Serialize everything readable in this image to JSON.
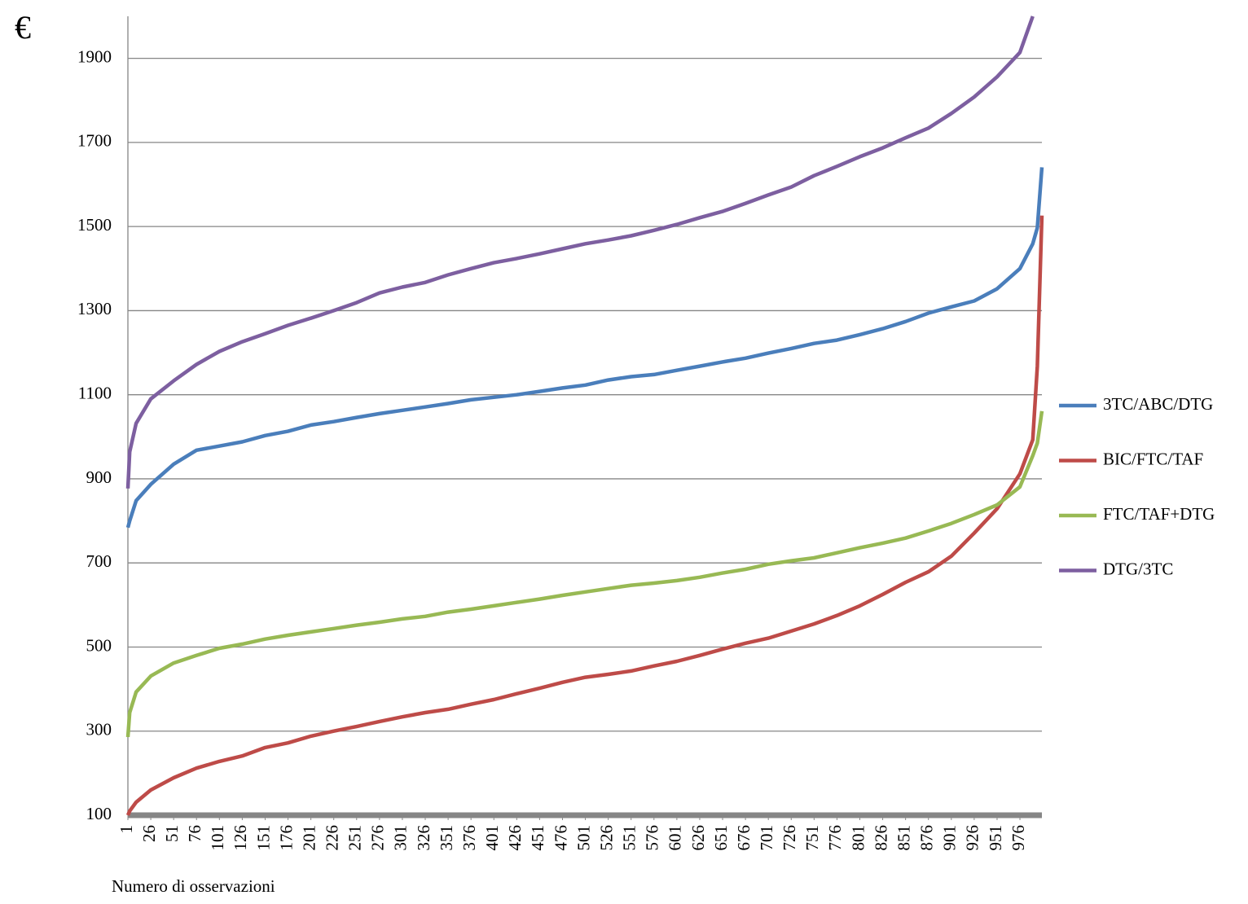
{
  "chart_data": {
    "type": "line",
    "y_label": "€",
    "x_label": "Numero di osservazioni",
    "x": [
      1,
      3,
      10,
      26,
      51,
      76,
      101,
      126,
      151,
      176,
      201,
      226,
      251,
      276,
      301,
      326,
      351,
      376,
      401,
      426,
      451,
      476,
      501,
      526,
      551,
      576,
      601,
      626,
      651,
      676,
      701,
      726,
      751,
      776,
      801,
      826,
      851,
      876,
      901,
      926,
      951,
      976,
      990,
      995,
      1000
    ],
    "xlim": [
      1,
      1000
    ],
    "xticks": [
      1,
      26,
      51,
      76,
      101,
      126,
      151,
      176,
      201,
      226,
      251,
      276,
      301,
      326,
      351,
      376,
      401,
      426,
      451,
      476,
      501,
      526,
      551,
      576,
      601,
      626,
      651,
      676,
      701,
      726,
      751,
      776,
      801,
      826,
      851,
      876,
      901,
      926,
      951,
      976
    ],
    "ylim": [
      100,
      2000
    ],
    "yticks": [
      100,
      300,
      500,
      700,
      900,
      1100,
      1300,
      1500,
      1700,
      1900
    ],
    "grid": true,
    "legend": "right",
    "series": [
      {
        "name": "3TC/ABC/DTG",
        "color": "#4a7ebb",
        "values": [
          784,
          800,
          848,
          887,
          935,
          968,
          978,
          988,
          1003,
          1013,
          1028,
          1036,
          1046,
          1055,
          1063,
          1071,
          1079,
          1088,
          1094,
          1100,
          1108,
          1116,
          1123,
          1135,
          1143,
          1148,
          1158,
          1168,
          1178,
          1187,
          1199,
          1210,
          1222,
          1230,
          1243,
          1257,
          1274,
          1294,
          1309,
          1323,
          1352,
          1400,
          1459,
          1497,
          1641
        ]
      },
      {
        "name": "BIC/FTC/TAF",
        "color": "#be4b48",
        "values": [
          100,
          110,
          131,
          160,
          189,
          212,
          228,
          241,
          261,
          272,
          288,
          300,
          311,
          323,
          334,
          344,
          352,
          364,
          375,
          389,
          402,
          416,
          428,
          435,
          443,
          455,
          466,
          480,
          495,
          509,
          521,
          538,
          555,
          575,
          598,
          625,
          654,
          679,
          716,
          771,
          829,
          912,
          993,
          1168,
          1526
        ]
      },
      {
        "name": "FTC/TAF+DTG",
        "color": "#98b954",
        "values": [
          286,
          344,
          393,
          431,
          462,
          480,
          497,
          507,
          519,
          528,
          536,
          544,
          552,
          559,
          567,
          573,
          583,
          590,
          598,
          606,
          614,
          623,
          631,
          639,
          647,
          652,
          658,
          666,
          676,
          685,
          697,
          705,
          712,
          724,
          736,
          747,
          759,
          776,
          794,
          815,
          838,
          881,
          955,
          985,
          1061
        ]
      },
      {
        "name": "DTG/3TC",
        "color": "#7d5fa0",
        "values": [
          877,
          964,
          1032,
          1090,
          1133,
          1172,
          1203,
          1226,
          1245,
          1265,
          1282,
          1300,
          1319,
          1342,
          1356,
          1367,
          1385,
          1400,
          1414,
          1424,
          1435,
          1447,
          1459,
          1468,
          1478,
          1491,
          1505,
          1521,
          1536,
          1555,
          1575,
          1594,
          1621,
          1643,
          1666,
          1687,
          1711,
          1734,
          1769,
          1808,
          1856,
          1914,
          2000,
          null,
          null
        ]
      }
    ]
  }
}
